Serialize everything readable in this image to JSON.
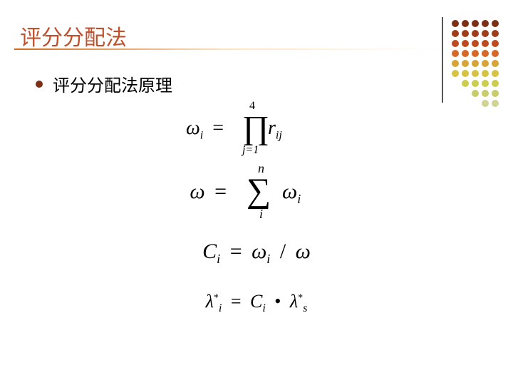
{
  "title": {
    "text": "评分分配法",
    "color": "#c0502c"
  },
  "bullet": {
    "text": "评分分配法原理",
    "color": "#7b3015"
  },
  "decor": {
    "dot_rows": 9,
    "dot_cols": 5,
    "row_colors": [
      "#7b3015",
      "#9e3d1a",
      "#bd4b1f",
      "#d66828",
      "#d6a437",
      "#d6c243",
      "#cccc4f",
      "#c8cc6a",
      "#cfd494"
    ]
  },
  "formulas": {
    "f1": {
      "lhs": "ω",
      "lhs_sub": "i",
      "op": "=",
      "big": "∏",
      "upper": "4",
      "lower": "j=1",
      "rhs": "r",
      "rhs_sub": "ij"
    },
    "f2": {
      "lhs": "ω",
      "op": "=",
      "big": "∑",
      "upper": "n",
      "lower": "i",
      "rhs": "ω",
      "rhs_sub": "i"
    },
    "f3": {
      "lhs": "C",
      "lhs_sub": "i",
      "op": "=",
      "a": "ω",
      "a_sub": "i",
      "div": "/",
      "b": "ω"
    },
    "f4": {
      "lhs": "λ",
      "lhs_sup": "*",
      "lhs_sub": "i",
      "op": "=",
      "a": "C",
      "a_sub": "i",
      "dot": "•",
      "b": "λ",
      "b_sup": "*",
      "b_sub": "s"
    }
  }
}
